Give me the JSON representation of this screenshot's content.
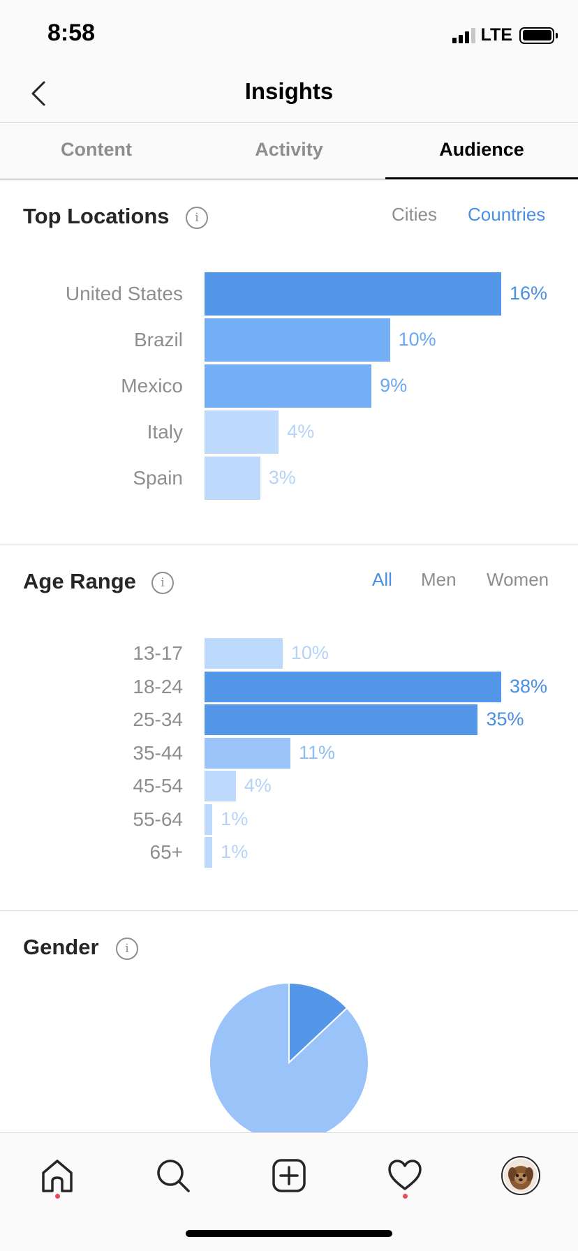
{
  "status_bar": {
    "time": "8:58",
    "network": "LTE"
  },
  "header": {
    "title": "Insights",
    "back_icon": "chevron-left-icon"
  },
  "tabs": [
    {
      "label": "Content",
      "active": false
    },
    {
      "label": "Activity",
      "active": false
    },
    {
      "label": "Audience",
      "active": true
    }
  ],
  "top_locations": {
    "title": "Top Locations",
    "toggles": [
      {
        "label": "Cities",
        "active": false
      },
      {
        "label": "Countries",
        "active": true
      }
    ],
    "chart_data": {
      "type": "bar",
      "orientation": "horizontal",
      "categories": [
        "United States",
        "Brazil",
        "Mexico",
        "Italy",
        "Spain"
      ],
      "values": [
        16,
        10,
        9,
        4,
        3
      ],
      "labels": [
        "16%",
        "10%",
        "9%",
        "4%",
        "3%"
      ]
    }
  },
  "age_range": {
    "title": "Age Range",
    "toggles": [
      {
        "label": "All",
        "active": true
      },
      {
        "label": "Men",
        "active": false
      },
      {
        "label": "Women",
        "active": false
      }
    ],
    "chart_data": {
      "type": "bar",
      "orientation": "horizontal",
      "categories": [
        "13-17",
        "18-24",
        "25-34",
        "35-44",
        "45-54",
        "55-64",
        "65+"
      ],
      "values": [
        10,
        38,
        35,
        11,
        4,
        1,
        1
      ],
      "labels": [
        "10%",
        "38%",
        "35%",
        "11%",
        "4%",
        "1%",
        "1%"
      ]
    }
  },
  "gender": {
    "title": "Gender",
    "chart_data": {
      "type": "pie",
      "values": [
        0.13,
        0.87
      ],
      "colors": [
        "#5497e8",
        "#99c3f9"
      ]
    }
  },
  "bar_colors": {
    "level_1": "#5497e8",
    "level_2": "#74aff6",
    "level_3": "#99c3f9",
    "level_4": "#bdd9fb",
    "text_1": "#4a90e2",
    "text_2": "#6aa9f2",
    "text_3": "#8fbdf5",
    "text_4": "#b5d3f8"
  },
  "bottom_nav": [
    {
      "icon": "home-icon",
      "notification": true
    },
    {
      "icon": "search-icon",
      "notification": false
    },
    {
      "icon": "new-post-icon",
      "notification": false
    },
    {
      "icon": "heart-icon",
      "notification": true
    },
    {
      "icon": "profile-avatar",
      "notification": false
    }
  ]
}
